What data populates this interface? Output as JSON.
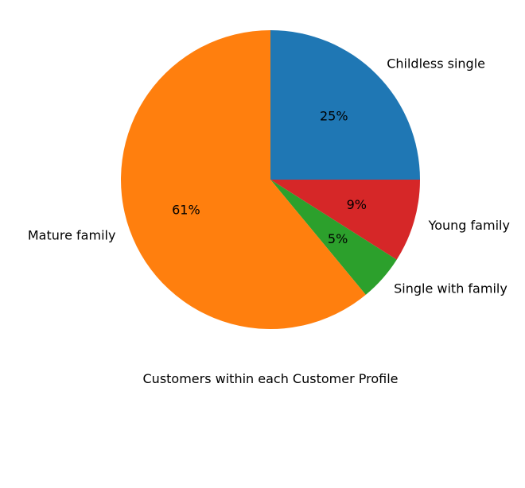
{
  "chart_data": {
    "type": "pie",
    "title": "",
    "xlabel": "Customers within each Customer Profile",
    "ylabel": "",
    "slices": [
      {
        "label": "Childless single",
        "value": 25,
        "value_label": "25%",
        "color": "#1f77b4"
      },
      {
        "label": "Young family",
        "value": 9,
        "value_label": "9%",
        "color": "#d62728"
      },
      {
        "label": "Single with family",
        "value": 5,
        "value_label": "5%",
        "color": "#2ca02c"
      },
      {
        "label": "Mature family",
        "value": 61,
        "value_label": "61%",
        "color": "#ff7f0e"
      }
    ],
    "start_angle": 90,
    "direction": "clockwise",
    "legend": "none"
  }
}
